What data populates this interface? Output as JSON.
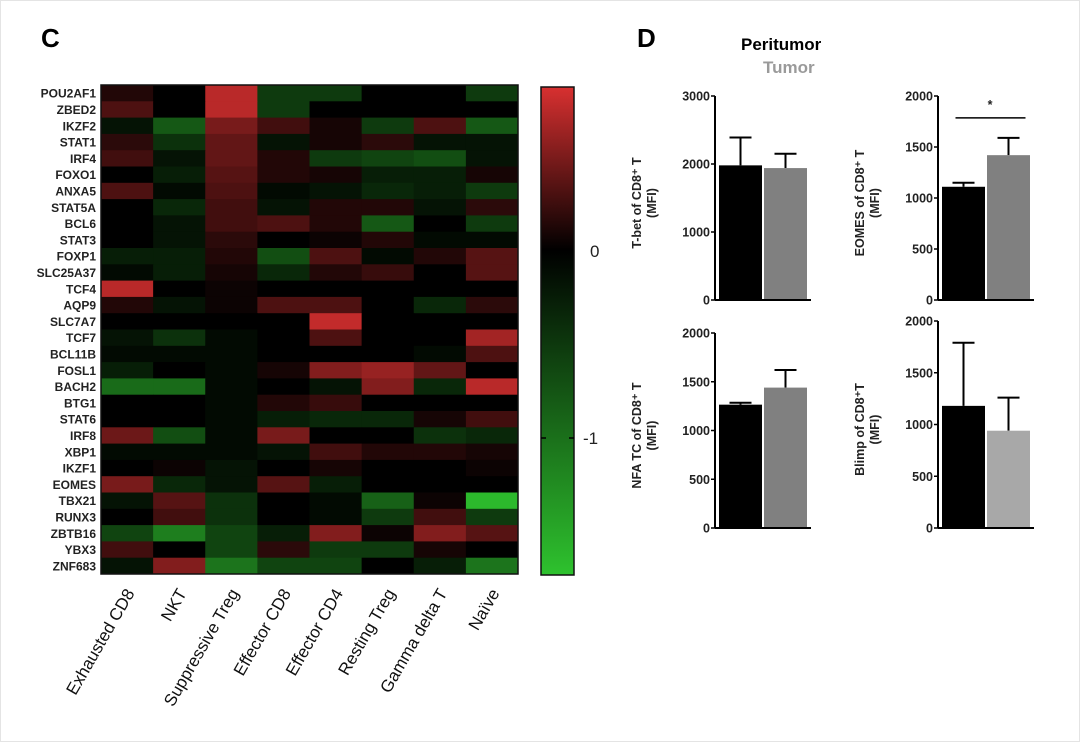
{
  "panels": {
    "left_letter": "C",
    "right_letter": "D"
  },
  "legend": {
    "peritumor": "Peritumor",
    "tumor": "Tumor",
    "peritumor_color": "#000000",
    "tumor_color": "#999999"
  },
  "colors": {
    "red_max": "#d83030",
    "green_max": "#2ec22e",
    "zero": "#000000"
  },
  "chart_data": [
    {
      "type": "heatmap",
      "title": "",
      "rows": [
        "POU2AF1",
        "ZBED2",
        "IKZF2",
        "STAT1",
        "IRF4",
        "FOXO1",
        "ANXA5",
        "STAT5A",
        "BCL6",
        "STAT3",
        "FOXP1",
        "SLC25A37",
        "TCF4",
        "AQP9",
        "SLC7A7",
        "TCF7",
        "BCL11B",
        "FOSL1",
        "BACH2",
        "BTG1",
        "STAT6",
        "IRF8",
        "XBP1",
        "IKZF1",
        "EOMES",
        "TBX21",
        "RUNX3",
        "ZBTB16",
        "YBX3",
        "ZNF683"
      ],
      "columns": [
        "Exhausted CD8",
        "NKT",
        "Suppressive Treg",
        "Effector CD8",
        "Effector CD4",
        "Resting Treg",
        "Gamma delta T",
        "Naïve"
      ],
      "values": [
        [
          0.14,
          0,
          0.77,
          -0.51,
          -0.51,
          0,
          0,
          -0.51
        ],
        [
          0.32,
          0,
          0.77,
          -0.51,
          0,
          0,
          0,
          0
        ],
        [
          -0.17,
          -0.77,
          0.5,
          0.27,
          0.09,
          -0.51,
          0.32,
          -0.77
        ],
        [
          0.18,
          -0.43,
          0.41,
          -0.17,
          0.09,
          0.18,
          -0.17,
          -0.17
        ],
        [
          0.27,
          -0.17,
          0.41,
          0.14,
          -0.51,
          -0.6,
          -0.68,
          -0.17
        ],
        [
          0,
          -0.26,
          0.36,
          0.14,
          0.09,
          -0.26,
          -0.26,
          0.09
        ],
        [
          0.32,
          -0.09,
          0.32,
          -0.09,
          -0.17,
          -0.34,
          -0.26,
          -0.51
        ],
        [
          0,
          -0.34,
          0.27,
          -0.17,
          0.14,
          0.14,
          -0.17,
          0.18
        ],
        [
          0,
          -0.17,
          0.27,
          0.32,
          0.14,
          -0.77,
          0,
          -0.51
        ],
        [
          0,
          -0.17,
          0.18,
          0,
          0.05,
          0.14,
          -0.09,
          -0.09
        ],
        [
          -0.26,
          -0.26,
          0.14,
          -0.68,
          0.32,
          -0.09,
          0.14,
          0.36
        ],
        [
          -0.09,
          -0.26,
          0.09,
          -0.34,
          0.14,
          0.23,
          0,
          0.36
        ],
        [
          0.77,
          0,
          0.05,
          0,
          0,
          0,
          0,
          0
        ],
        [
          0.14,
          -0.17,
          0.05,
          0.32,
          0.32,
          0,
          -0.34,
          0.18
        ],
        [
          0,
          0,
          0,
          0,
          0.81,
          0,
          0,
          0
        ],
        [
          -0.17,
          -0.43,
          -0.09,
          0,
          0.32,
          0,
          0,
          0.68
        ],
        [
          -0.09,
          -0.09,
          -0.09,
          0,
          0,
          0,
          -0.09,
          0.32
        ],
        [
          -0.26,
          0,
          -0.09,
          0.09,
          0.54,
          0.63,
          0.41,
          0
        ],
        [
          -0.94,
          -0.94,
          -0.09,
          0,
          -0.17,
          0.54,
          -0.34,
          0.77
        ],
        [
          0,
          0,
          -0.09,
          0.14,
          0.23,
          0,
          0,
          0
        ],
        [
          0,
          0,
          -0.09,
          -0.26,
          -0.34,
          -0.34,
          0.09,
          0.27
        ],
        [
          0.45,
          -0.68,
          -0.09,
          0.5,
          0,
          0,
          -0.43,
          -0.34
        ],
        [
          -0.09,
          -0.09,
          -0.09,
          -0.17,
          0.27,
          0.14,
          0.14,
          0.09
        ],
        [
          0,
          0.05,
          -0.17,
          0,
          0.09,
          0,
          0,
          0.05
        ],
        [
          0.5,
          -0.34,
          -0.17,
          0.36,
          -0.26,
          0,
          0,
          0
        ],
        [
          -0.17,
          0.36,
          -0.43,
          0,
          -0.09,
          -0.85,
          0.05,
          -1.62
        ],
        [
          0,
          0.27,
          -0.43,
          0,
          -0.09,
          -0.51,
          0.27,
          -0.51
        ],
        [
          -0.6,
          -1.1,
          -0.6,
          -0.26,
          0.54,
          0.05,
          0.54,
          0.36
        ],
        [
          0.27,
          0,
          -0.6,
          0.18,
          -0.51,
          -0.51,
          0.09,
          0
        ],
        [
          -0.17,
          0.54,
          -1.02,
          -0.6,
          -0.6,
          0,
          -0.26,
          -1.02
        ]
      ],
      "colorbar": {
        "range": [
          -1.7,
          0.9
        ],
        "tick_labels": [
          "0",
          "-1"
        ],
        "ticks": [
          0,
          -1
        ]
      }
    },
    {
      "type": "bar",
      "title": "",
      "xlabel": "",
      "ylabel": "T-bet of CD8⁺ T",
      "ylabel2": "(MFI)",
      "categories": [
        "Peritumor",
        "Tumor"
      ],
      "values": [
        1980,
        1940
      ],
      "errors": [
        410,
        210
      ],
      "ylim": [
        0,
        3000
      ],
      "yticks": [
        "0",
        "1000",
        "2000",
        "3000"
      ],
      "tick_values": [
        0,
        1000,
        2000,
        3000
      ],
      "bar_colors": [
        "#000000",
        "#808080"
      ],
      "significance": ""
    },
    {
      "type": "bar",
      "title": "",
      "xlabel": "",
      "ylabel": "EOMES of CD8⁺ T",
      "ylabel2": "(MFI)",
      "categories": [
        "Peritumor",
        "Tumor"
      ],
      "values": [
        1110,
        1420
      ],
      "errors": [
        40,
        170
      ],
      "ylim": [
        0,
        2000
      ],
      "yticks": [
        "0",
        "500",
        "1000",
        "1500",
        "2000"
      ],
      "tick_values": [
        0,
        500,
        1000,
        1500,
        2000
      ],
      "bar_colors": [
        "#000000",
        "#808080"
      ],
      "significance": "*"
    },
    {
      "type": "bar",
      "title": "",
      "xlabel": "",
      "ylabel": "NFA TC of CD8⁺ T",
      "ylabel2": "(MFI)",
      "categories": [
        "Peritumor",
        "Tumor"
      ],
      "values": [
        1265,
        1440
      ],
      "errors": [
        20,
        180
      ],
      "ylim": [
        0,
        2000
      ],
      "yticks": [
        "0",
        "500",
        "1000",
        "1500",
        "2000"
      ],
      "tick_values": [
        0,
        500,
        1000,
        1500,
        2000
      ],
      "bar_colors": [
        "#000000",
        "#808080"
      ],
      "significance": ""
    },
    {
      "type": "bar",
      "title": "",
      "xlabel": "",
      "ylabel": "Blimp of CD8⁺T",
      "ylabel2": "(MFI)",
      "categories": [
        "Peritumor",
        "Tumor"
      ],
      "values": [
        1180,
        940
      ],
      "errors": [
        610,
        320
      ],
      "ylim": [
        0,
        2000
      ],
      "yticks": [
        "0",
        "500",
        "1000",
        "1500",
        "2000"
      ],
      "tick_values": [
        0,
        500,
        1000,
        1500,
        2000
      ],
      "bar_colors": [
        "#000000",
        "#a8a8a8"
      ],
      "significance": ""
    }
  ]
}
